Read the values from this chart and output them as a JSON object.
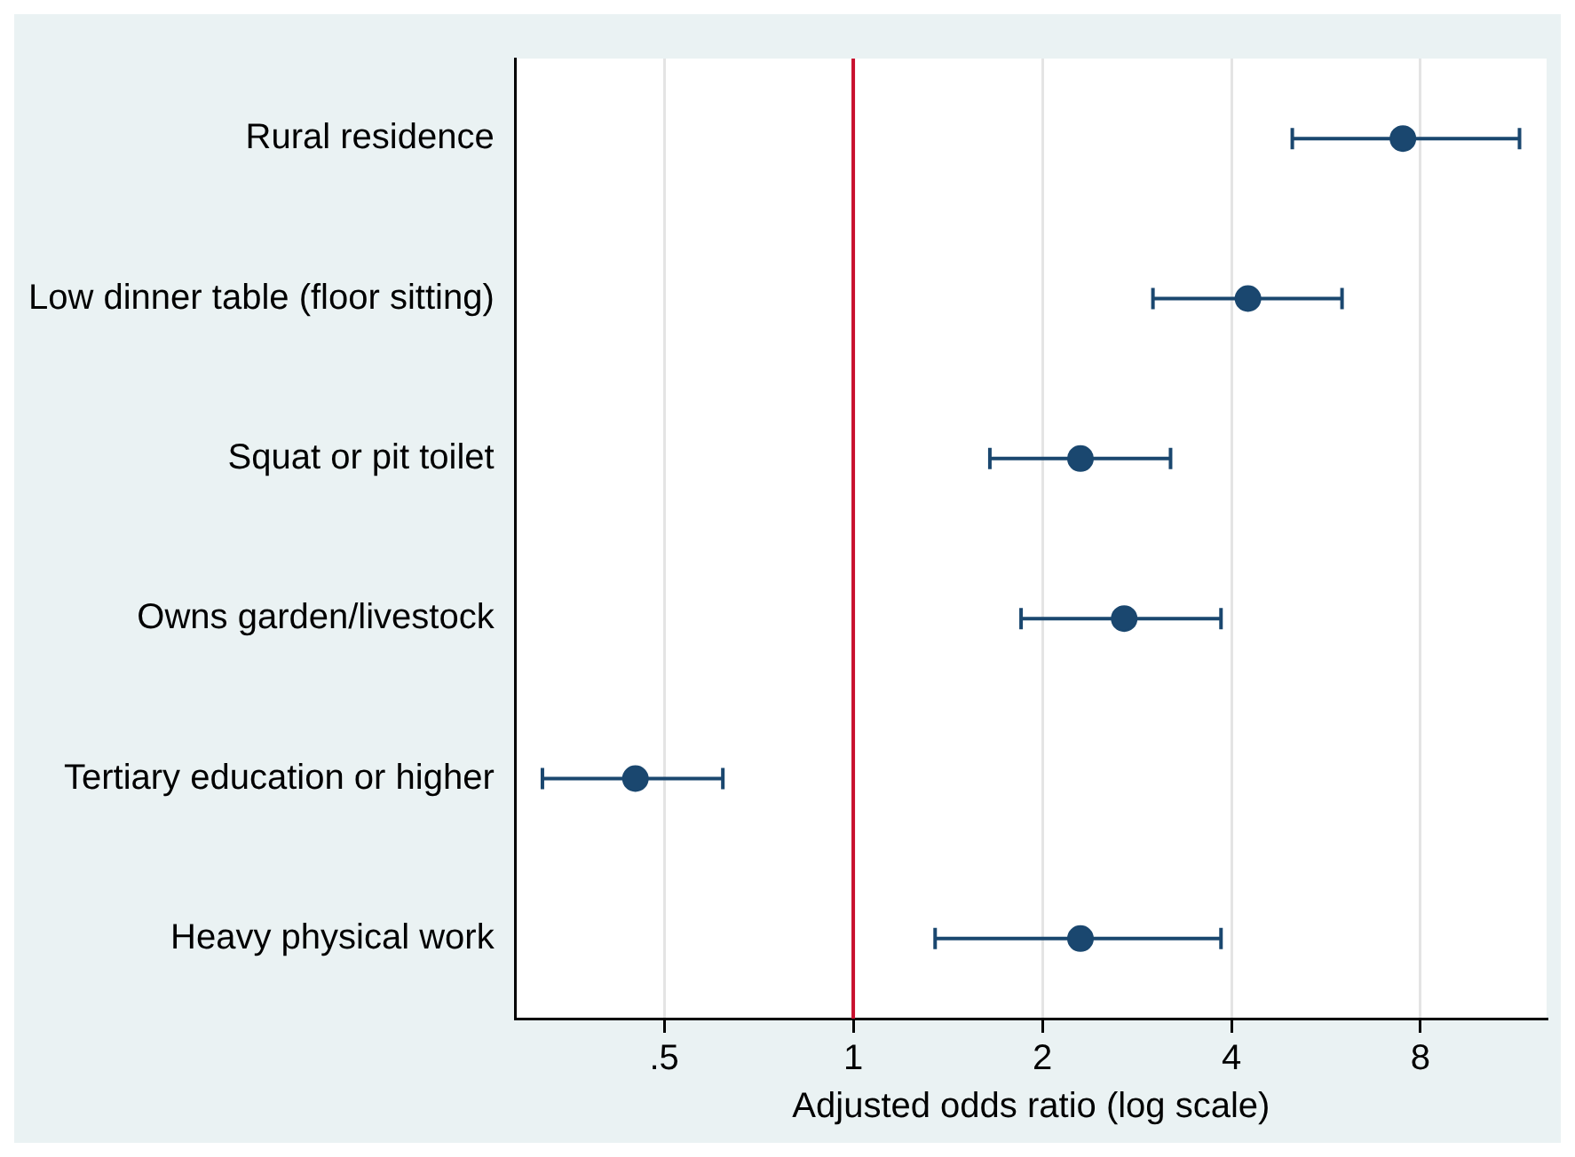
{
  "chart_data": {
    "type": "scatter",
    "orientation": "horizontal",
    "xlabel": "Adjusted odds ratio (log scale)",
    "categories": [
      "Rural residence",
      "Low dinner table (floor sitting)",
      "Squat or pit toilet",
      "Owns garden/livestock",
      "Tertiary education or higher",
      "Heavy physical work"
    ],
    "series": [
      {
        "color": "#1a476f",
        "values": [
          7.5,
          4.25,
          2.3,
          2.7,
          0.45,
          2.3
        ],
        "errors": [
          [
            5.0,
            11.5
          ],
          [
            3.0,
            6.0
          ],
          [
            1.65,
            3.2
          ],
          [
            1.85,
            3.85
          ],
          [
            0.32,
            0.62
          ],
          [
            1.35,
            3.85
          ]
        ]
      }
    ],
    "log": "x",
    "xlim": [
      0.29,
      12.7
    ],
    "xticks": [
      {
        "value": 0.5,
        "label": ".5"
      },
      1,
      2,
      4,
      8
    ],
    "ref_lines": [
      {
        "axis": "x",
        "value": 1,
        "color": "#c8102e"
      }
    ],
    "grid": "x",
    "marker": "circle",
    "legend": false
  }
}
